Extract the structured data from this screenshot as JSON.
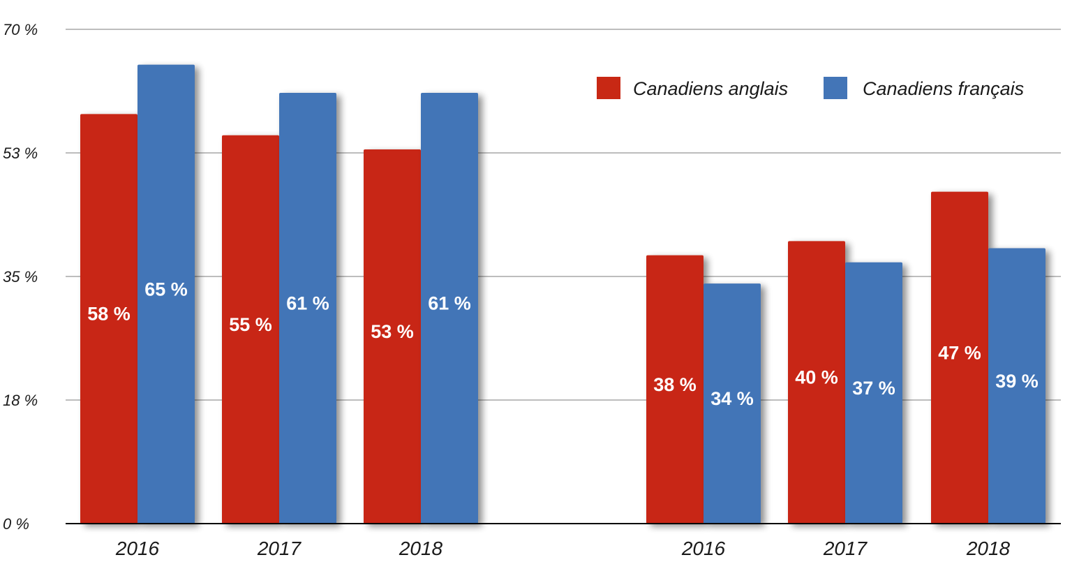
{
  "chart_data": {
    "type": "bar",
    "groups": [
      {
        "categories": [
          "2016",
          "2017",
          "2018"
        ],
        "series": [
          {
            "name": "Canadiens anglais",
            "values": [
              58,
              55,
              53
            ],
            "labels": [
              "58 %",
              "55 %",
              "53 %"
            ]
          },
          {
            "name": "Canadiens français",
            "values": [
              65,
              61,
              61
            ],
            "labels": [
              "65 %",
              "61 %",
              "61 %"
            ]
          }
        ]
      },
      {
        "categories": [
          "2016",
          "2017",
          "2018"
        ],
        "series": [
          {
            "name": "Canadiens anglais",
            "values": [
              38,
              40,
              47
            ],
            "labels": [
              "38 %",
              "40 %",
              "47 %"
            ]
          },
          {
            "name": "Canadiens français",
            "values": [
              34,
              37,
              39
            ],
            "labels": [
              "34 %",
              "37 %",
              "39 %"
            ]
          }
        ]
      }
    ],
    "legend": [
      "Canadiens anglais",
      "Canadiens français"
    ],
    "legend_position": "top-right",
    "y_ticks": [
      {
        "value": 0,
        "label": "0 %"
      },
      {
        "value": 17.5,
        "label": "18 %"
      },
      {
        "value": 35,
        "label": "35 %"
      },
      {
        "value": 52.5,
        "label": "53 %"
      },
      {
        "value": 70,
        "label": "70 %"
      }
    ],
    "ylim": [
      0,
      70
    ],
    "grid": true,
    "colors": {
      "Canadiens anglais": "#c82814",
      "Canadiens français": "#4375b7"
    },
    "title": "",
    "xlabel": "",
    "ylabel": ""
  }
}
